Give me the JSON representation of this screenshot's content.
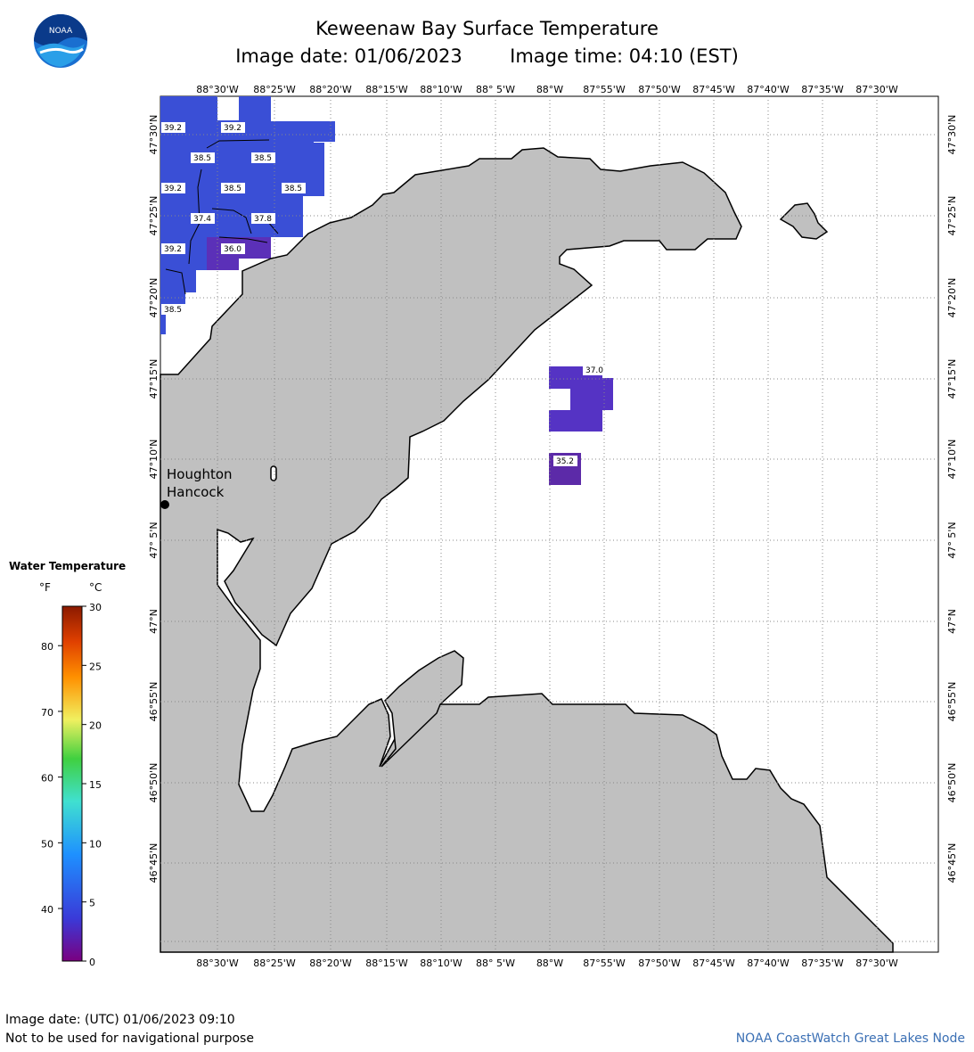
{
  "header": {
    "title": "Keweenaw Bay Surface Temperature",
    "image_date": "Image date: 01/06/2023",
    "image_time": "Image time: 04:10 (EST)"
  },
  "logo": {
    "text": "NOAA",
    "icon": "noaa-logo-icon"
  },
  "map": {
    "longitude_labels": [
      "88°30'W",
      "88°25'W",
      "88°20'W",
      "88°15'W",
      "88°10'W",
      "88° 5'W",
      "88°W",
      "87°55'W",
      "87°50'W",
      "87°45'W",
      "87°40'W",
      "87°35'W",
      "87°30'W"
    ],
    "latitude_labels": [
      "47°30'N",
      "47°25'N",
      "47°20'N",
      "47°15'N",
      "47°10'N",
      "47° 5'N",
      "47°N",
      "46°55'N",
      "46°50'N",
      "46°45'N"
    ],
    "temperature_labels": [
      "39.2",
      "39.2",
      "38.5",
      "38.5",
      "39.2",
      "38.5",
      "38.5",
      "37.4",
      "37.8",
      "39.2",
      "36.0",
      "38.5",
      "37.0",
      "35.2"
    ],
    "city": {
      "name1": "Houghton",
      "name2": "Hancock"
    },
    "colors": {
      "land": "#c0c0c0",
      "water_blue": "#3a4fd6",
      "water_violet": "#5b30b8",
      "grid": "#888888"
    }
  },
  "legend": {
    "title": "Water Temperature",
    "unit_f": "°F",
    "unit_c": "°C",
    "f_ticks": [
      "80",
      "70",
      "60",
      "50",
      "40"
    ],
    "c_ticks": [
      "30",
      "25",
      "20",
      "15",
      "10",
      "5",
      "0"
    ]
  },
  "footer": {
    "utc_date": "Image date: (UTC) 01/06/2023  09:10",
    "disclaimer": "Not to be used for navigational purpose",
    "credit": "NOAA CoastWatch Great Lakes Node"
  }
}
